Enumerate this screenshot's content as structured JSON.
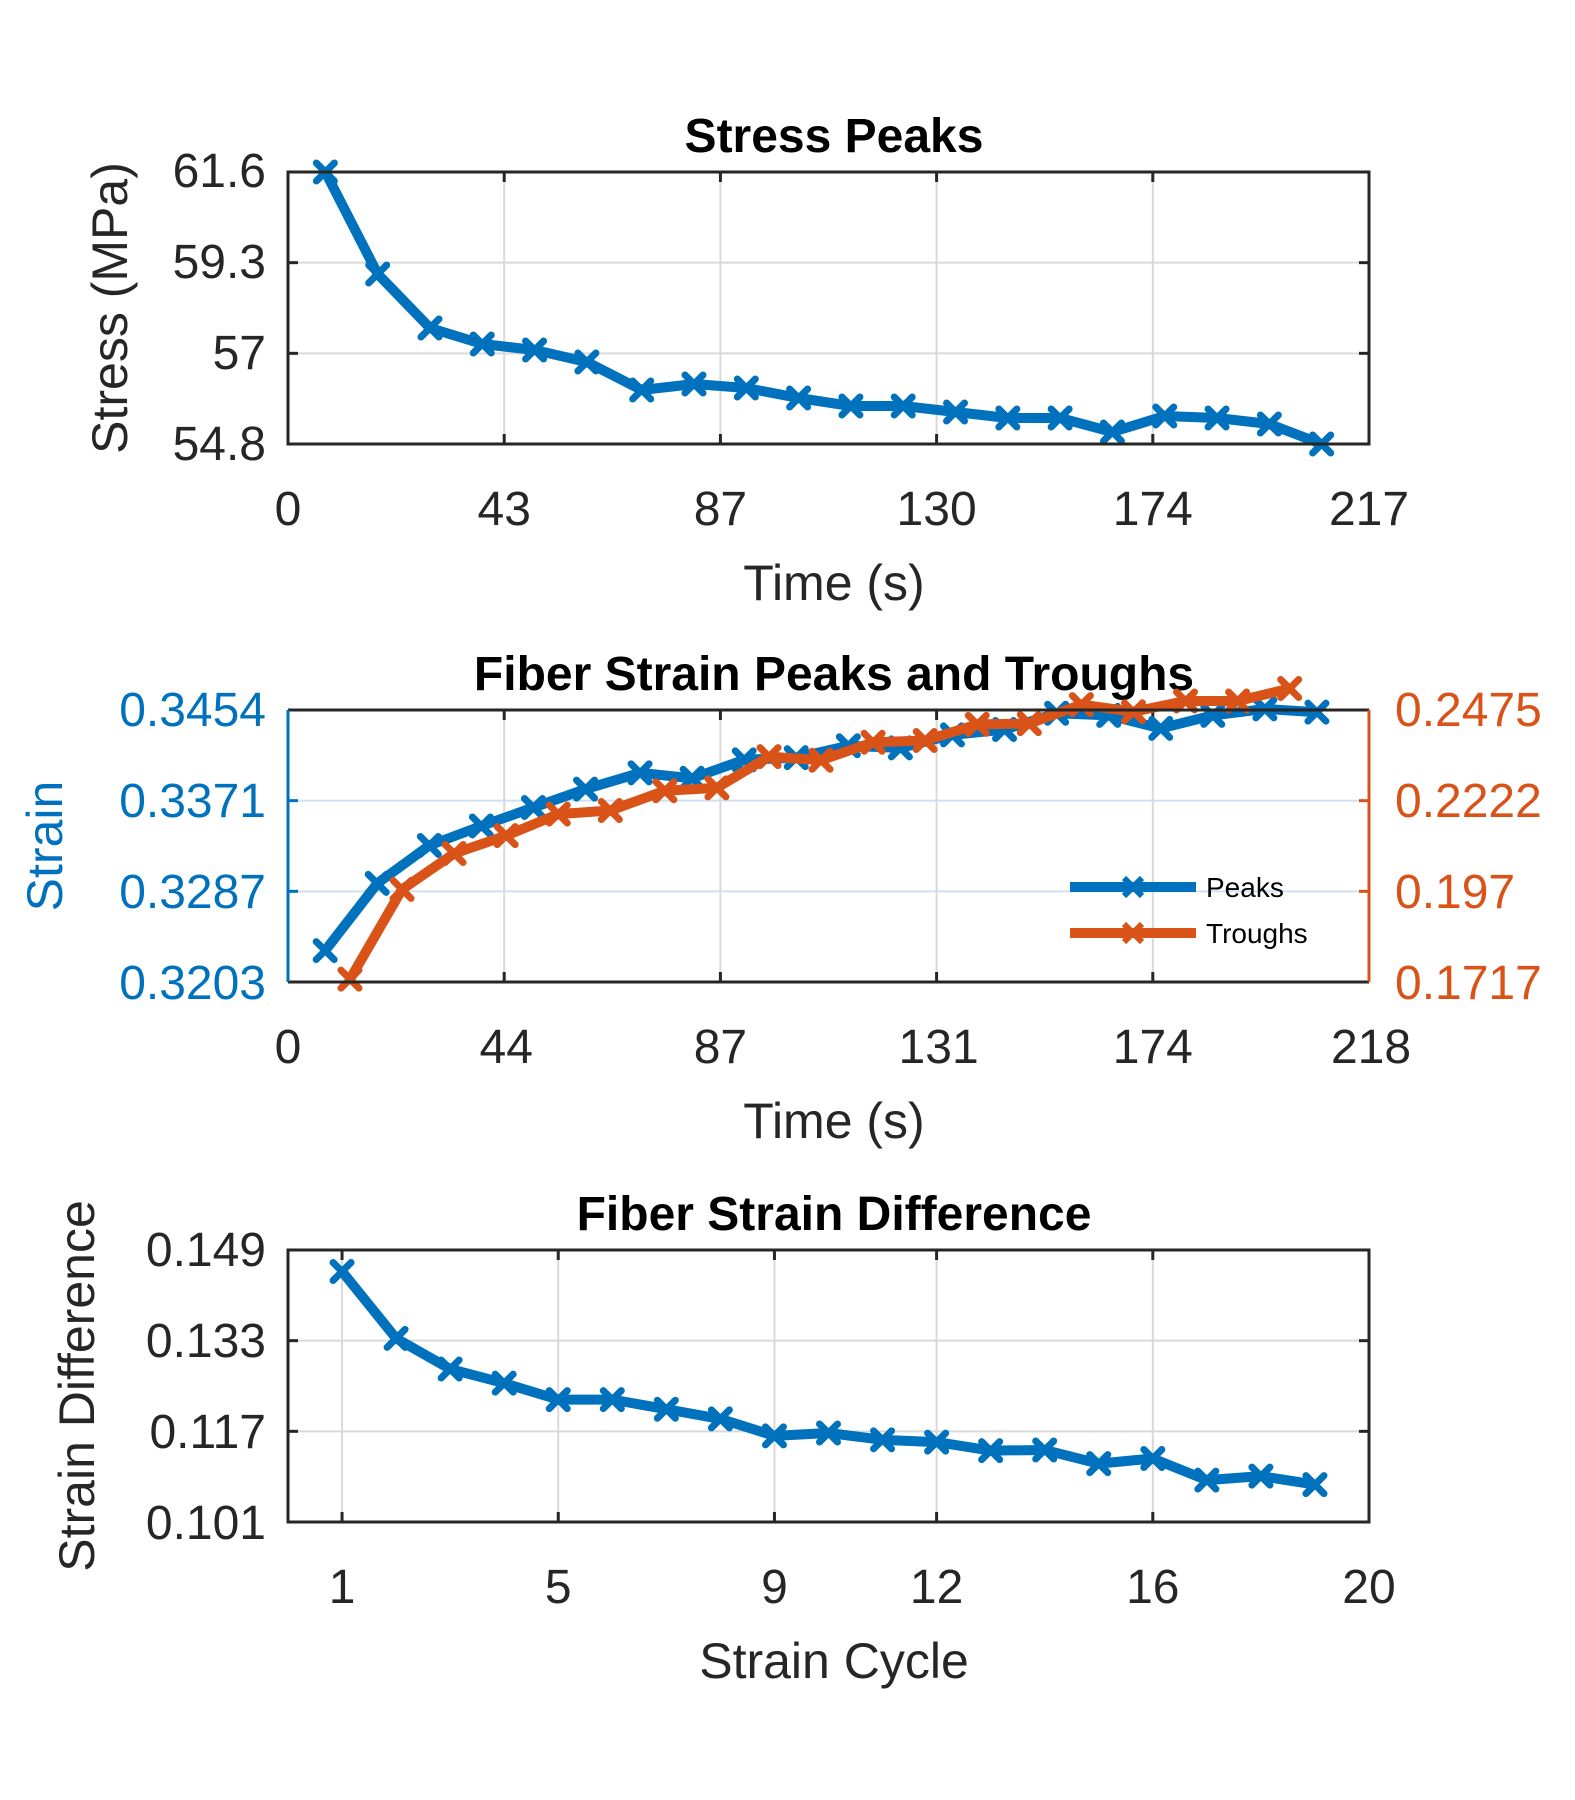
{
  "colors": {
    "blue": "#0072BD",
    "orange": "#D95319",
    "grid": "#d9d9d9",
    "axis": "#262626"
  },
  "chart_data": [
    {
      "type": "line",
      "title": "Stress Peaks",
      "xlabel": "Time (s)",
      "ylabel": "Stress (MPa)",
      "xlim": [
        0,
        217
      ],
      "ylim": [
        54.8,
        61.6
      ],
      "x_ticks": [
        "0",
        "43",
        "87",
        "130",
        "174",
        "217"
      ],
      "y_ticks": [
        "54.8",
        "57",
        "59.3",
        "61.6"
      ],
      "grid": true,
      "series": [
        {
          "color": "#0072BD",
          "x": [
            7.5,
            18,
            28.5,
            39,
            49.5,
            60,
            71,
            81.5,
            92,
            102.5,
            113,
            123.5,
            134,
            144.5,
            155,
            165.5,
            176,
            186.5,
            197,
            207.5
          ],
          "y": [
            61.6,
            59.05,
            57.7,
            57.3,
            57.15,
            56.85,
            56.15,
            56.3,
            56.2,
            55.95,
            55.75,
            55.75,
            55.6,
            55.45,
            55.45,
            55.1,
            55.5,
            55.45,
            55.3,
            54.8
          ]
        }
      ]
    },
    {
      "type": "line",
      "title": "Fiber Strain Peaks and Troughs",
      "xlabel": "Time (s)",
      "ylabel": "Strain",
      "xlim": [
        0,
        218
      ],
      "ylim": [
        0.3203,
        0.3454
      ],
      "y2lim": [
        0.1717,
        0.2475
      ],
      "x_ticks": [
        "0",
        "44",
        "87",
        "131",
        "174",
        "218"
      ],
      "y_ticks": [
        "0.3203",
        "0.3287",
        "0.3371",
        "0.3454"
      ],
      "y2_ticks": [
        "0.1717",
        "0.197",
        "0.2222",
        "0.2475"
      ],
      "grid": true,
      "legend_position": "bottom-right",
      "series": [
        {
          "name": "Peaks",
          "axis": "left",
          "color": "#0072BD",
          "x": [
            7.5,
            18,
            28.5,
            39,
            49.5,
            60,
            71,
            81.5,
            92,
            102.5,
            113,
            123.5,
            134,
            144.5,
            155,
            165.5,
            176,
            186.5,
            197,
            207.5
          ],
          "y": [
            0.3232,
            0.3294,
            0.3329,
            0.3347,
            0.3364,
            0.3381,
            0.3396,
            0.3391,
            0.3408,
            0.341,
            0.3421,
            0.3419,
            0.3431,
            0.3436,
            0.3451,
            0.3449,
            0.3437,
            0.3449,
            0.3455,
            0.3452
          ]
        },
        {
          "name": "Troughs",
          "axis": "right",
          "color": "#D95319",
          "x": [
            12.5,
            23,
            33.5,
            44,
            54.5,
            65,
            76,
            86.5,
            97,
            107.5,
            118,
            128.5,
            139,
            149.5,
            160,
            170.5,
            181,
            191.5,
            202
          ],
          "y": [
            0.1725,
            0.1975,
            0.2075,
            0.2125,
            0.2185,
            0.2195,
            0.225,
            0.2258,
            0.2345,
            0.2335,
            0.2385,
            0.239,
            0.2435,
            0.2437,
            0.249,
            0.247,
            0.25,
            0.25,
            0.2535
          ]
        }
      ]
    },
    {
      "type": "line",
      "title": "Fiber Strain Difference",
      "xlabel": "Strain Cycle",
      "ylabel": "Strain Difference",
      "xlim": [
        0,
        20
      ],
      "ylim": [
        0.101,
        0.149
      ],
      "x_ticks": [
        "1",
        "5",
        "9",
        "12",
        "16",
        "20"
      ],
      "x_tick_values": [
        1,
        5,
        9,
        12,
        16,
        20
      ],
      "y_ticks": [
        "0.101",
        "0.117",
        "0.133",
        "0.149"
      ],
      "grid": true,
      "series": [
        {
          "color": "#0072BD",
          "x": [
            1,
            2,
            3,
            4,
            5,
            6,
            7,
            8,
            9,
            10,
            11,
            12,
            13,
            14,
            15,
            16,
            17,
            18,
            19
          ],
          "y": [
            0.1452,
            0.1334,
            0.128,
            0.1255,
            0.1226,
            0.1226,
            0.1209,
            0.1192,
            0.1162,
            0.1167,
            0.1155,
            0.1151,
            0.1136,
            0.1137,
            0.1113,
            0.1122,
            0.1084,
            0.1091,
            0.1076
          ]
        }
      ]
    }
  ]
}
